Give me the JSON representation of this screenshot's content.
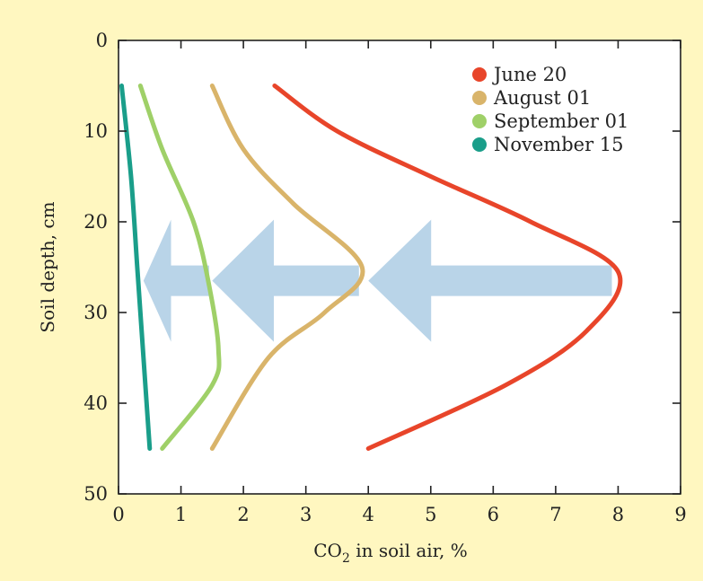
{
  "colors": {
    "background": "#fff7c0",
    "plot_background": "#ffffff",
    "arrow": "#b9d4e8",
    "june": "#e8452a",
    "august": "#d9b46a",
    "september": "#9fd068",
    "november": "#1a9e8a"
  },
  "chart_data": {
    "type": "line",
    "xlabel_main": "CO",
    "xlabel_sub": "2",
    "xlabel_rest": " in soil air, %",
    "ylabel": "Soil depth, cm",
    "xlim": [
      0,
      9
    ],
    "ylim": [
      0,
      50
    ],
    "y_inverted": true,
    "x_ticks": [
      "0",
      "1",
      "2",
      "3",
      "4",
      "5",
      "6",
      "7",
      "8",
      "9"
    ],
    "y_ticks": [
      "0",
      "10",
      "20",
      "30",
      "40",
      "50"
    ],
    "grid": false,
    "legend_position": "top-right",
    "series": [
      {
        "name": "June 20",
        "color": "#e8452a",
        "points": [
          [
            2.5,
            5
          ],
          [
            3.5,
            10
          ],
          [
            5.0,
            15
          ],
          [
            6.6,
            20
          ],
          [
            8.0,
            25.5
          ],
          [
            7.5,
            32
          ],
          [
            6.2,
            38
          ],
          [
            4.0,
            45
          ]
        ]
      },
      {
        "name": "August 01",
        "color": "#d9b46a",
        "points": [
          [
            1.5,
            5
          ],
          [
            2.0,
            12
          ],
          [
            2.8,
            18
          ],
          [
            3.9,
            25
          ],
          [
            3.3,
            30
          ],
          [
            2.4,
            35
          ],
          [
            1.5,
            45
          ]
        ]
      },
      {
        "name": "September 01",
        "color": "#9fd068",
        "points": [
          [
            0.35,
            5
          ],
          [
            0.7,
            12
          ],
          [
            1.2,
            20
          ],
          [
            1.45,
            27
          ],
          [
            1.6,
            34
          ],
          [
            1.5,
            38
          ],
          [
            0.7,
            45
          ]
        ]
      },
      {
        "name": "November 15",
        "color": "#1a9e8a",
        "points": [
          [
            0.05,
            5
          ],
          [
            0.2,
            15
          ],
          [
            0.3,
            25
          ],
          [
            0.4,
            35
          ],
          [
            0.5,
            45
          ]
        ]
      }
    ],
    "arrows": [
      {
        "from_x": 7.9,
        "to_x": 4.0,
        "y": 26.5
      },
      {
        "from_x": 3.85,
        "to_x": 1.5,
        "y": 26.5
      },
      {
        "from_x": 1.45,
        "to_x": 0.4,
        "y": 26.5
      }
    ]
  }
}
